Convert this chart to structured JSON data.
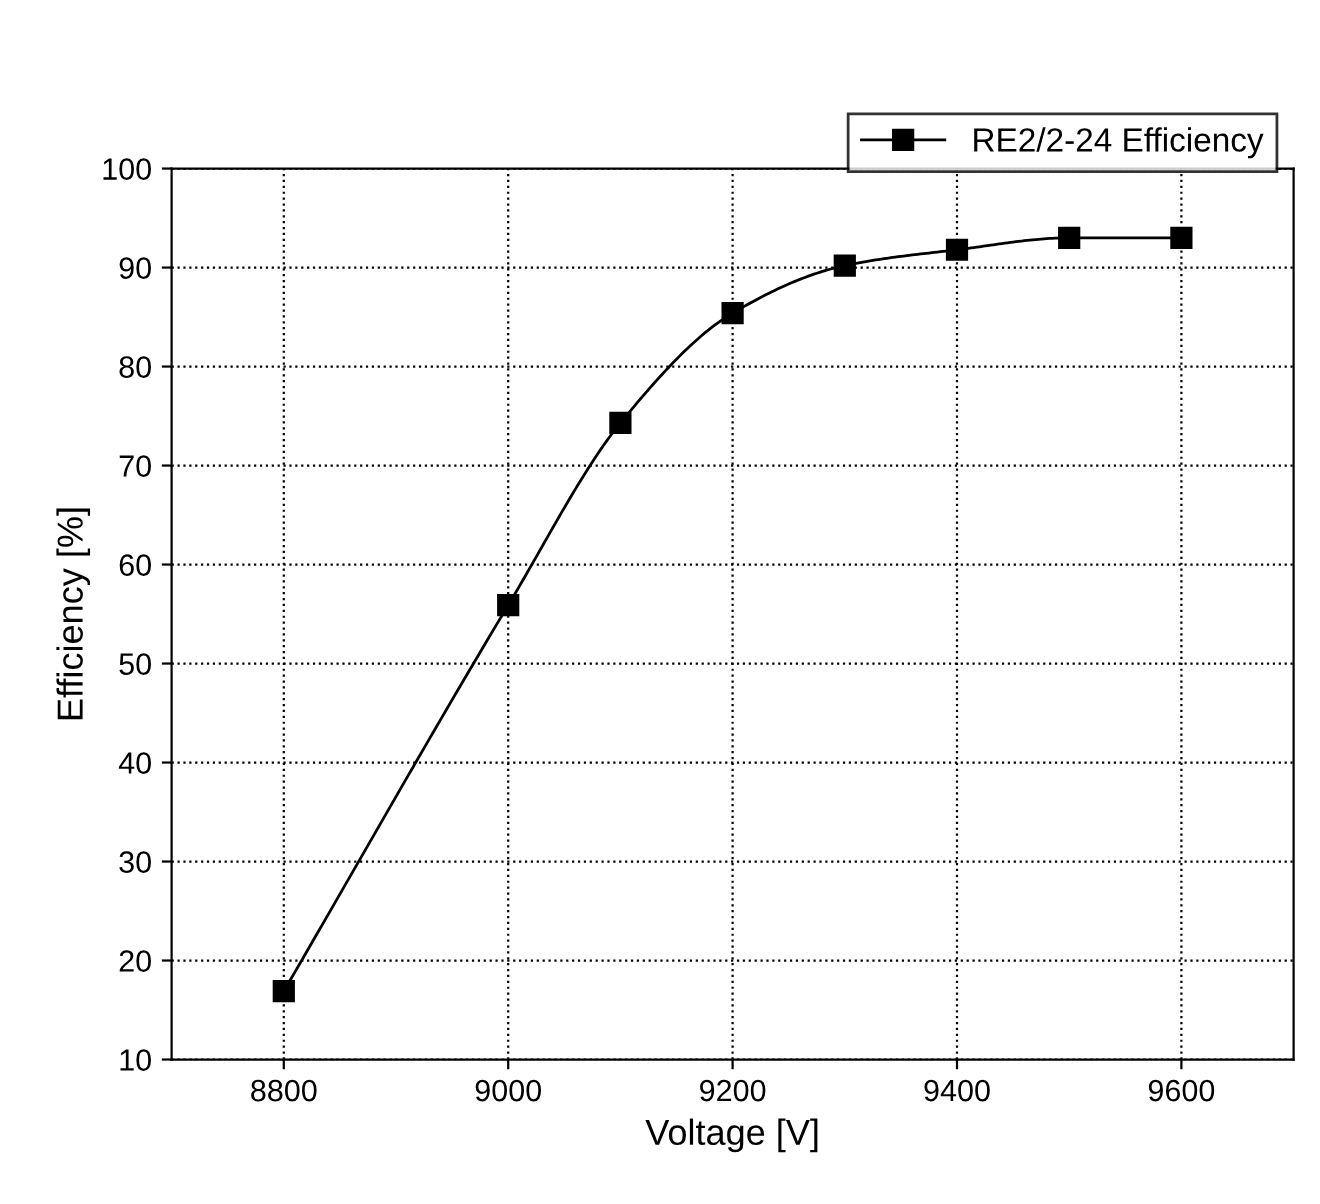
{
  "chart_data": {
    "type": "line",
    "xlabel": "Voltage [V]",
    "ylabel": "Efficiency [%]",
    "x": [
      8800,
      9000,
      9100,
      9200,
      9300,
      9400,
      9500,
      9600
    ],
    "series": [
      {
        "name": "RE2/2-24 Efficiency",
        "color": "#000000",
        "values": [
          16.9,
          55.9,
          74.3,
          85.4,
          90.2,
          91.8,
          93.0,
          93.0
        ]
      }
    ],
    "xlim": [
      8700,
      9700
    ],
    "xticks": [
      8800,
      9000,
      9200,
      9400,
      9600
    ],
    "ylim": [
      10,
      100
    ],
    "yticks": [
      10,
      20,
      30,
      40,
      50,
      60,
      70,
      80,
      90,
      100
    ],
    "grid": true,
    "legend": "top right",
    "marker": "square",
    "line_style": "solid"
  }
}
